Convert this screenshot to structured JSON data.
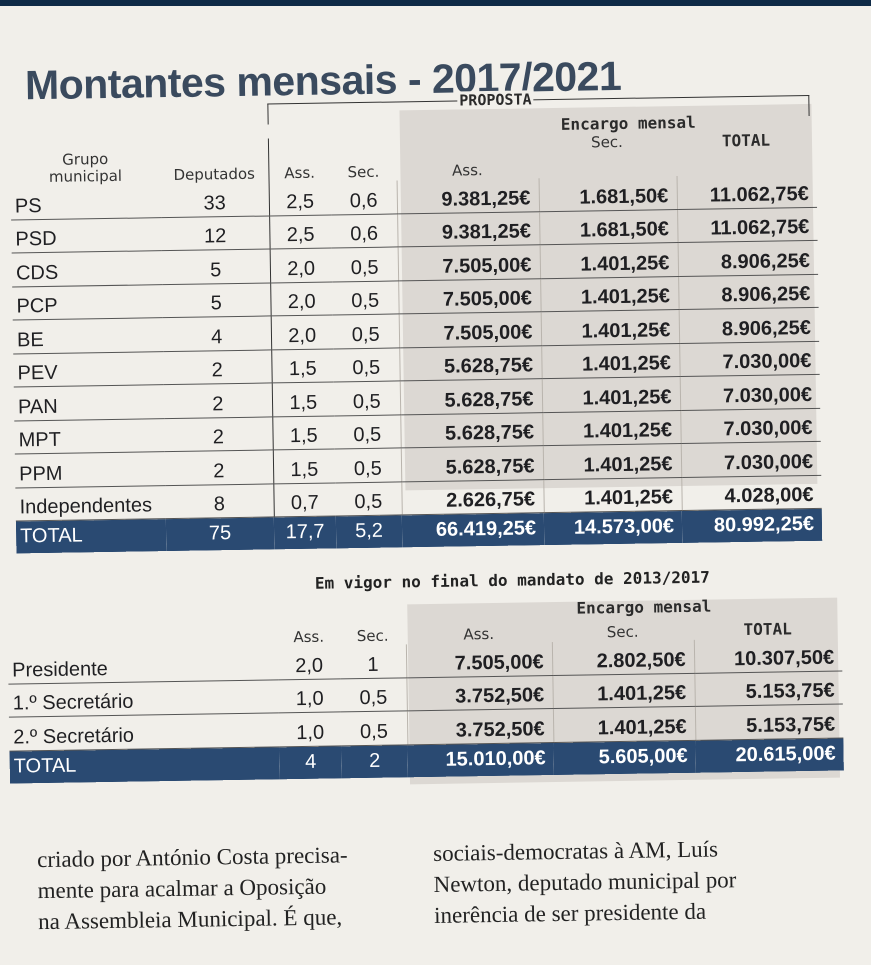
{
  "headline": "Montantes mensais - 2017/2021",
  "table1": {
    "proposta_label": "PROPOSTA",
    "encargo_label": "Encargo mensal",
    "headers": {
      "grupo_line1": "Grupo",
      "grupo_line2": "municipal",
      "deputados": "Deputados",
      "ass": "Ass.",
      "sec": "Sec.",
      "enc_ass": "Ass.",
      "enc_sec": "Sec.",
      "total": "TOTAL"
    },
    "rows": [
      {
        "grupo": "PS",
        "deputados": "33",
        "ass": "2,5",
        "sec": "0,6",
        "enc_ass": "9.381,25€",
        "enc_sec": "1.681,50€",
        "total": "11.062,75€"
      },
      {
        "grupo": "PSD",
        "deputados": "12",
        "ass": "2,5",
        "sec": "0,6",
        "enc_ass": "9.381,25€",
        "enc_sec": "1.681,50€",
        "total": "11.062,75€"
      },
      {
        "grupo": "CDS",
        "deputados": "5",
        "ass": "2,0",
        "sec": "0,5",
        "enc_ass": "7.505,00€",
        "enc_sec": "1.401,25€",
        "total": "8.906,25€"
      },
      {
        "grupo": "PCP",
        "deputados": "5",
        "ass": "2,0",
        "sec": "0,5",
        "enc_ass": "7.505,00€",
        "enc_sec": "1.401,25€",
        "total": "8.906,25€"
      },
      {
        "grupo": "BE",
        "deputados": "4",
        "ass": "2,0",
        "sec": "0,5",
        "enc_ass": "7.505,00€",
        "enc_sec": "1.401,25€",
        "total": "8.906,25€"
      },
      {
        "grupo": "PEV",
        "deputados": "2",
        "ass": "1,5",
        "sec": "0,5",
        "enc_ass": "5.628,75€",
        "enc_sec": "1.401,25€",
        "total": "7.030,00€"
      },
      {
        "grupo": "PAN",
        "deputados": "2",
        "ass": "1,5",
        "sec": "0,5",
        "enc_ass": "5.628,75€",
        "enc_sec": "1.401,25€",
        "total": "7.030,00€"
      },
      {
        "grupo": "MPT",
        "deputados": "2",
        "ass": "1,5",
        "sec": "0,5",
        "enc_ass": "5.628,75€",
        "enc_sec": "1.401,25€",
        "total": "7.030,00€"
      },
      {
        "grupo": "PPM",
        "deputados": "2",
        "ass": "1,5",
        "sec": "0,5",
        "enc_ass": "5.628,75€",
        "enc_sec": "1.401,25€",
        "total": "7.030,00€"
      },
      {
        "grupo": "Independentes",
        "deputados": "8",
        "ass": "0,7",
        "sec": "0,5",
        "enc_ass": "2.626,75€",
        "enc_sec": "1.401,25€",
        "total": "4.028,00€"
      }
    ],
    "total": {
      "label": "TOTAL",
      "deputados": "75",
      "ass": "17,7",
      "sec": "5,2",
      "enc_ass": "66.419,25€",
      "enc_sec": "14.573,00€",
      "total": "80.992,25€"
    }
  },
  "table2": {
    "title": "Em vigor no final do mandato de 2013/2017",
    "encargo_label": "Encargo mensal",
    "headers": {
      "ass": "Ass.",
      "sec": "Sec.",
      "enc_ass": "Ass.",
      "enc_sec": "Sec.",
      "total": "TOTAL"
    },
    "rows": [
      {
        "cargo": "Presidente",
        "ass": "2,0",
        "sec": "1",
        "enc_ass": "7.505,00€",
        "enc_sec": "2.802,50€",
        "total": "10.307,50€"
      },
      {
        "cargo": "1.º Secretário",
        "ass": "1,0",
        "sec": "0,5",
        "enc_ass": "3.752,50€",
        "enc_sec": "1.401,25€",
        "total": "5.153,75€"
      },
      {
        "cargo": "2.º Secretário",
        "ass": "1,0",
        "sec": "0,5",
        "enc_ass": "3.752,50€",
        "enc_sec": "1.401,25€",
        "total": "5.153,75€"
      }
    ],
    "total": {
      "label": "TOTAL",
      "ass": "4",
      "sec": "2",
      "enc_ass": "15.010,00€",
      "enc_sec": "5.605,00€",
      "total": "20.615,00€"
    }
  },
  "article": {
    "col1": [
      "criado por António Costa precisa-",
      "mente para acalmar a Oposição",
      "na Assembleia Municipal. É que,"
    ],
    "col2": [
      "sociais-democratas à AM, Luís",
      "Newton, deputado municipal por",
      "inerência de ser presidente da"
    ]
  }
}
